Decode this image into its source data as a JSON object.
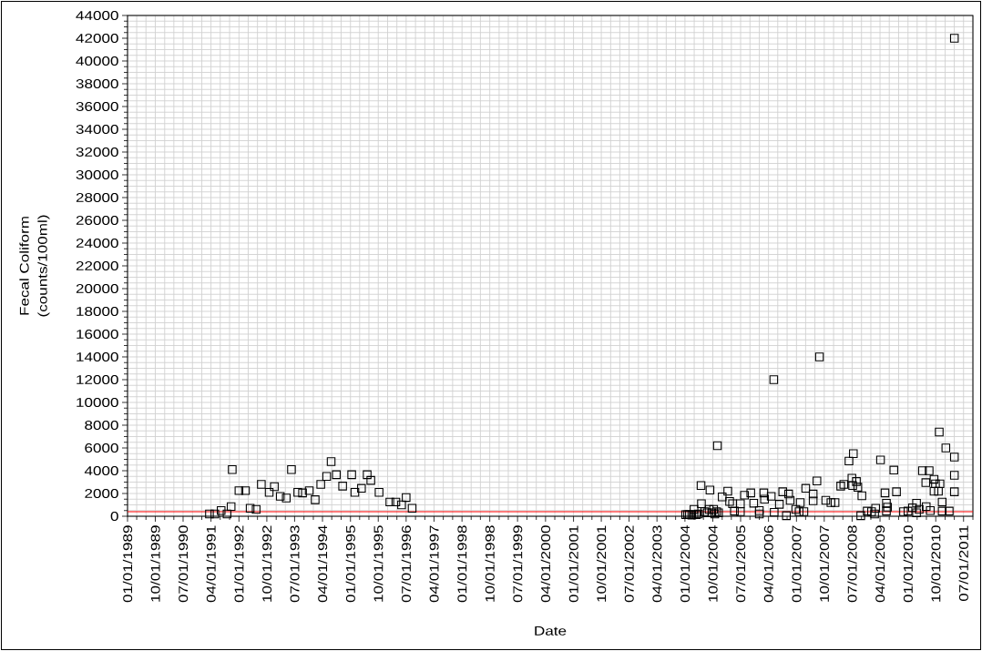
{
  "chart_data": {
    "type": "scatter",
    "xlabel": "Date",
    "ylabel": "Fecal Coliform (counts/100ml)",
    "color": "#000000",
    "marker": "square",
    "grid": true,
    "xlim": [
      "1989-01-01",
      "2011-10-01"
    ],
    "ylim": [
      0,
      44000
    ],
    "xticks": [
      {
        "value": "1989-01-01",
        "label": "01/01/1989"
      },
      {
        "value": "1989-04-01",
        "label": null
      },
      {
        "value": "1989-07-01",
        "label": null
      },
      {
        "value": "1989-10-01",
        "label": "10/01/1989"
      },
      {
        "value": "1990-01-01",
        "label": null
      },
      {
        "value": "1990-04-01",
        "label": null
      },
      {
        "value": "1990-07-01",
        "label": "07/01/1990"
      },
      {
        "value": "1990-10-01",
        "label": null
      },
      {
        "value": "1991-01-01",
        "label": null
      },
      {
        "value": "1991-04-01",
        "label": "04/01/1991"
      },
      {
        "value": "1991-07-01",
        "label": null
      },
      {
        "value": "1991-10-01",
        "label": null
      },
      {
        "value": "1992-01-01",
        "label": "01/01/1992"
      },
      {
        "value": "1992-04-01",
        "label": null
      },
      {
        "value": "1992-07-01",
        "label": null
      },
      {
        "value": "1992-10-01",
        "label": "10/01/1992"
      },
      {
        "value": "1993-01-01",
        "label": null
      },
      {
        "value": "1993-04-01",
        "label": null
      },
      {
        "value": "1993-07-01",
        "label": "07/01/1993"
      },
      {
        "value": "1993-10-01",
        "label": null
      },
      {
        "value": "1994-01-01",
        "label": null
      },
      {
        "value": "1994-04-01",
        "label": "04/01/1994"
      },
      {
        "value": "1994-07-01",
        "label": null
      },
      {
        "value": "1994-10-01",
        "label": null
      },
      {
        "value": "1995-01-01",
        "label": "01/01/1995"
      },
      {
        "value": "1995-04-01",
        "label": null
      },
      {
        "value": "1995-07-01",
        "label": null
      },
      {
        "value": "1995-10-01",
        "label": "10/01/1995"
      },
      {
        "value": "1996-01-01",
        "label": null
      },
      {
        "value": "1996-04-01",
        "label": null
      },
      {
        "value": "1996-07-01",
        "label": "07/01/1996"
      },
      {
        "value": "1996-10-01",
        "label": null
      },
      {
        "value": "1997-01-01",
        "label": null
      },
      {
        "value": "1997-04-01",
        "label": "04/01/1997"
      },
      {
        "value": "1997-07-01",
        "label": null
      },
      {
        "value": "1997-10-01",
        "label": null
      },
      {
        "value": "1998-01-01",
        "label": "01/01/1998"
      },
      {
        "value": "1998-04-01",
        "label": null
      },
      {
        "value": "1998-07-01",
        "label": null
      },
      {
        "value": "1998-10-01",
        "label": "10/01/1998"
      },
      {
        "value": "1999-01-01",
        "label": null
      },
      {
        "value": "1999-04-01",
        "label": null
      },
      {
        "value": "1999-07-01",
        "label": "07/01/1999"
      },
      {
        "value": "1999-10-01",
        "label": null
      },
      {
        "value": "2000-01-01",
        "label": null
      },
      {
        "value": "2000-04-01",
        "label": "04/01/2000"
      },
      {
        "value": "2000-07-01",
        "label": null
      },
      {
        "value": "2000-10-01",
        "label": null
      },
      {
        "value": "2001-01-01",
        "label": "01/01/2001"
      },
      {
        "value": "2001-04-01",
        "label": null
      },
      {
        "value": "2001-07-01",
        "label": null
      },
      {
        "value": "2001-10-01",
        "label": "10/01/2001"
      },
      {
        "value": "2002-01-01",
        "label": null
      },
      {
        "value": "2002-04-01",
        "label": null
      },
      {
        "value": "2002-07-01",
        "label": "07/01/2002"
      },
      {
        "value": "2002-10-01",
        "label": null
      },
      {
        "value": "2003-01-01",
        "label": null
      },
      {
        "value": "2003-04-01",
        "label": "04/01/2003"
      },
      {
        "value": "2003-07-01",
        "label": null
      },
      {
        "value": "2003-10-01",
        "label": null
      },
      {
        "value": "2004-01-01",
        "label": "01/01/2004"
      },
      {
        "value": "2004-04-01",
        "label": null
      },
      {
        "value": "2004-07-01",
        "label": null
      },
      {
        "value": "2004-10-01",
        "label": "10/01/2004"
      },
      {
        "value": "2005-01-01",
        "label": null
      },
      {
        "value": "2005-04-01",
        "label": null
      },
      {
        "value": "2005-07-01",
        "label": "07/01/2005"
      },
      {
        "value": "2005-10-01",
        "label": null
      },
      {
        "value": "2006-01-01",
        "label": null
      },
      {
        "value": "2006-04-01",
        "label": "04/01/2006"
      },
      {
        "value": "2006-07-01",
        "label": null
      },
      {
        "value": "2006-10-01",
        "label": null
      },
      {
        "value": "2007-01-01",
        "label": "01/01/2007"
      },
      {
        "value": "2007-04-01",
        "label": null
      },
      {
        "value": "2007-07-01",
        "label": null
      },
      {
        "value": "2007-10-01",
        "label": "10/01/2007"
      },
      {
        "value": "2008-01-01",
        "label": null
      },
      {
        "value": "2008-04-01",
        "label": null
      },
      {
        "value": "2008-07-01",
        "label": "07/01/2008"
      },
      {
        "value": "2008-10-01",
        "label": null
      },
      {
        "value": "2009-01-01",
        "label": null
      },
      {
        "value": "2009-04-01",
        "label": "04/01/2009"
      },
      {
        "value": "2009-07-01",
        "label": null
      },
      {
        "value": "2009-10-01",
        "label": null
      },
      {
        "value": "2010-01-01",
        "label": "01/01/2010"
      },
      {
        "value": "2010-04-01",
        "label": null
      },
      {
        "value": "2010-07-01",
        "label": null
      },
      {
        "value": "2010-10-01",
        "label": "10/01/2010"
      },
      {
        "value": "2011-01-01",
        "label": null
      },
      {
        "value": "2011-04-01",
        "label": null
      },
      {
        "value": "2011-07-01",
        "label": "07/01/2011"
      },
      {
        "value": "2011-10-01",
        "label": null
      }
    ],
    "yticks": [
      0,
      {
        "value": 500,
        "label": null
      },
      {
        "value": 1000,
        "label": null
      },
      {
        "value": 1500,
        "label": null
      },
      2000,
      {
        "value": 2500,
        "label": null
      },
      {
        "value": 3000,
        "label": null
      },
      {
        "value": 3500,
        "label": null
      },
      4000,
      {
        "value": 4500,
        "label": null
      },
      {
        "value": 5000,
        "label": null
      },
      {
        "value": 5500,
        "label": null
      },
      6000,
      {
        "value": 6500,
        "label": null
      },
      {
        "value": 7000,
        "label": null
      },
      {
        "value": 7500,
        "label": null
      },
      8000,
      {
        "value": 8500,
        "label": null
      },
      {
        "value": 9000,
        "label": null
      },
      {
        "value": 9500,
        "label": null
      },
      10000,
      {
        "value": 10500,
        "label": null
      },
      {
        "value": 11000,
        "label": null
      },
      {
        "value": 11500,
        "label": null
      },
      12000,
      {
        "value": 12500,
        "label": null
      },
      {
        "value": 13000,
        "label": null
      },
      {
        "value": 13500,
        "label": null
      },
      14000,
      {
        "value": 14500,
        "label": null
      },
      {
        "value": 15000,
        "label": null
      },
      {
        "value": 15500,
        "label": null
      },
      16000,
      {
        "value": 16500,
        "label": null
      },
      {
        "value": 17000,
        "label": null
      },
      {
        "value": 17500,
        "label": null
      },
      18000,
      {
        "value": 18500,
        "label": null
      },
      {
        "value": 19000,
        "label": null
      },
      {
        "value": 19500,
        "label": null
      },
      20000,
      {
        "value": 20500,
        "label": null
      },
      {
        "value": 21000,
        "label": null
      },
      {
        "value": 21500,
        "label": null
      },
      22000,
      {
        "value": 22500,
        "label": null
      },
      {
        "value": 23000,
        "label": null
      },
      {
        "value": 23500,
        "label": null
      },
      24000,
      {
        "value": 24500,
        "label": null
      },
      {
        "value": 25000,
        "label": null
      },
      {
        "value": 25500,
        "label": null
      },
      26000,
      {
        "value": 26500,
        "label": null
      },
      {
        "value": 27000,
        "label": null
      },
      {
        "value": 27500,
        "label": null
      },
      28000,
      {
        "value": 28500,
        "label": null
      },
      {
        "value": 29000,
        "label": null
      },
      {
        "value": 29500,
        "label": null
      },
      30000,
      {
        "value": 30500,
        "label": null
      },
      {
        "value": 31000,
        "label": null
      },
      {
        "value": 31500,
        "label": null
      },
      32000,
      {
        "value": 32500,
        "label": null
      },
      {
        "value": 33000,
        "label": null
      },
      {
        "value": 33500,
        "label": null
      },
      34000,
      {
        "value": 34500,
        "label": null
      },
      {
        "value": 35000,
        "label": null
      },
      {
        "value": 35500,
        "label": null
      },
      36000,
      {
        "value": 36500,
        "label": null
      },
      {
        "value": 37000,
        "label": null
      },
      {
        "value": 37500,
        "label": null
      },
      38000,
      {
        "value": 38500,
        "label": null
      },
      {
        "value": 39000,
        "label": null
      },
      {
        "value": 39500,
        "label": null
      },
      40000,
      {
        "value": 40500,
        "label": null
      },
      {
        "value": 41000,
        "label": null
      },
      {
        "value": 41500,
        "label": null
      },
      42000,
      {
        "value": 42500,
        "label": null
      },
      {
        "value": 43000,
        "label": null
      },
      {
        "value": 43500,
        "label": null
      },
      44000
    ],
    "ref_lines": [
      {
        "axis": "y",
        "value": 400,
        "color": "#ff0000"
      }
    ],
    "x": [
      "1991-03-17",
      "1991-05-09",
      "1991-07-10",
      "1991-09-06",
      "1991-10-16",
      "1991-10-27",
      "1992-01-01",
      "1992-03-05",
      "1992-04-20",
      "1992-06-18",
      "1992-08-08",
      "1992-10-24",
      "1992-12-14",
      "1993-02-10",
      "1993-04-10",
      "1993-05-31",
      "1993-08-01",
      "1993-09-17",
      "1993-11-22",
      "1994-01-19",
      "1994-03-15",
      "1994-05-12",
      "1994-06-25",
      "1994-08-15",
      "1994-10-16",
      "1995-01-13",
      "1995-02-13",
      "1995-04-19",
      "1995-06-14",
      "1995-07-20",
      "1995-10-09",
      "1996-01-23",
      "1996-03-22",
      "1996-05-17",
      "1996-07-01",
      "1996-08-29",
      "2004-01-08",
      "2004-01-27",
      "2004-02-14",
      "2004-03-08",
      "2004-03-30",
      "2004-03-30",
      "2004-04-21",
      "2004-05-12",
      "2004-06-07",
      "2004-06-11",
      "2004-07-13",
      "2004-08-08",
      "2004-08-26",
      "2004-09-03",
      "2004-09-21",
      "2004-10-09",
      "2004-10-20",
      "2004-11-07",
      "2004-11-15",
      "2004-11-26",
      "2005-01-01",
      "2005-02-25",
      "2005-03-15",
      "2005-04-13",
      "2005-05-01",
      "2005-06-29",
      "2005-06-29",
      "2005-08-08",
      "2005-10-09",
      "2005-11-07",
      "2006-01-01",
      "2006-01-01",
      "2006-02-14",
      "2006-02-21",
      "2006-04-28",
      "2006-05-23",
      "2006-05-27",
      "2006-07-17",
      "2006-08-19",
      "2006-09-24",
      "2006-10-16",
      "2006-10-31",
      "2006-12-25",
      "2007-01-27",
      "2007-02-07",
      "2007-03-15",
      "2007-04-02",
      "2007-06-14",
      "2007-06-14",
      "2007-07-21",
      "2007-08-15",
      "2007-10-16",
      "2007-12-06",
      "2008-01-15",
      "2008-03-11",
      "2008-04-10",
      "2008-05-31",
      "2008-06-29",
      "2008-07-06",
      "2008-07-13",
      "2008-08-12",
      "2008-08-26",
      "2008-09-24",
      "2008-10-05",
      "2008-11-26",
      "2009-01-08",
      "2009-02-07",
      "2009-02-17",
      "2009-04-06",
      "2009-05-20",
      "2009-06-03",
      "2009-06-03",
      "2009-06-14",
      "2009-08-15",
      "2009-09-10",
      "2009-11-18",
      "2010-01-01",
      "2010-02-14",
      "2010-03-26",
      "2010-03-26",
      "2010-04-21",
      "2010-05-23",
      "2010-06-25",
      "2010-06-29",
      "2010-07-28",
      "2010-08-08",
      "2010-09-14",
      "2010-09-28",
      "2010-09-14",
      "2010-10-27",
      "2010-11-04",
      "2010-11-11",
      "2010-12-03",
      "2010-12-03",
      "2011-01-08",
      "2011-02-10",
      "2011-04-02",
      "2011-04-02",
      "2011-04-02",
      "2011-04-02"
    ],
    "values": [
      200,
      200,
      500,
      200,
      850,
      4100,
      2250,
      2250,
      700,
      600,
      2800,
      2100,
      2600,
      1750,
      1600,
      4100,
      2100,
      2050,
      2250,
      1450,
      2800,
      3500,
      4800,
      3650,
      2650,
      3650,
      2100,
      2450,
      3650,
      3150,
      2100,
      1250,
      1250,
      1000,
      1650,
      700,
      150,
      150,
      150,
      100,
      150,
      600,
      150,
      200,
      2700,
      1100,
      400,
      300,
      600,
      2300,
      300,
      600,
      200,
      400,
      6200,
      300,
      1700,
      2200,
      1300,
      1100,
      450,
      1100,
      400,
      1850,
      2050,
      1150,
      500,
      200,
      2050,
      1500,
      1750,
      12000,
      350,
      1050,
      2150,
      50,
      1950,
      1400,
      600,
      400,
      1200,
      400,
      2450,
      1950,
      1350,
      3100,
      14000,
      1400,
      1200,
      1200,
      2650,
      2800,
      4850,
      3350,
      2700,
      5500,
      3050,
      2550,
      50,
      1800,
      450,
      400,
      200,
      700,
      4950,
      2050,
      1150,
      450,
      800,
      4050,
      2150,
      400,
      450,
      750,
      1150,
      300,
      600,
      4000,
      2950,
      850,
      4000,
      500,
      3250,
      2850,
      2200,
      2200,
      7400,
      2850,
      1250,
      450,
      6000,
      450,
      5200,
      3600,
      2150,
      42000
    ]
  }
}
